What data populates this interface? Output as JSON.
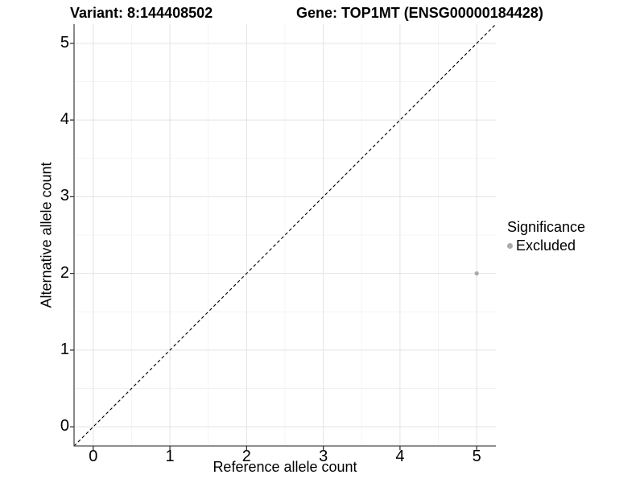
{
  "titles": {
    "variant": "Variant: 8:144408502",
    "gene": "Gene: TOP1MT (ENSG00000184428)"
  },
  "colors": {
    "background": "#ffffff",
    "axis_line": "#4a4a4a",
    "tick_mark": "#333333",
    "grid_major": "#e3e3e3",
    "grid_minor": "#f1f1f1",
    "reference_line": "#000000",
    "point": "#aaaaaa",
    "text": "#000000"
  },
  "chart_data": {
    "type": "scatter",
    "title_left": "Variant: 8:144408502",
    "title_right": "Gene: TOP1MT (ENSG00000184428)",
    "xlabel": "Reference allele count",
    "ylabel": "Alternative allele count",
    "xlim": [
      -0.25,
      5.25
    ],
    "ylim": [
      -0.25,
      5.25
    ],
    "x_ticks": [
      0,
      1,
      2,
      3,
      4,
      5
    ],
    "y_ticks": [
      0,
      1,
      2,
      3,
      4,
      5
    ],
    "x_minor_gridlines": [
      0.5,
      1.5,
      2.5,
      3.5,
      4.5
    ],
    "y_minor_gridlines": [
      0.5,
      1.5,
      2.5,
      3.5,
      4.5
    ],
    "grid": true,
    "reference_line": {
      "type": "abline",
      "slope": 1,
      "intercept": 0,
      "style": "dashed"
    },
    "series": [
      {
        "name": "Excluded",
        "color": "#aaaaaa",
        "points": [
          {
            "x": 5,
            "y": 2
          }
        ]
      }
    ],
    "legend": {
      "title": "Significance",
      "position": "right",
      "items": [
        {
          "label": "Excluded",
          "color": "#aaaaaa"
        }
      ]
    }
  }
}
